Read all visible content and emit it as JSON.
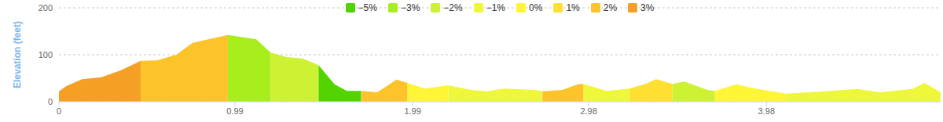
{
  "chart_data": {
    "type": "area",
    "y_label": "Elevation (feet)",
    "legend": "top",
    "grid": true,
    "xlim": [
      0,
      4.96
    ],
    "xticks": [
      0,
      0.99,
      1.99,
      2.98,
      3.98
    ],
    "ylim": [
      0,
      200
    ],
    "yticks": [
      0,
      100,
      200
    ],
    "x": [
      0,
      0.04,
      0.13,
      0.24,
      0.35,
      0.46,
      0.55,
      0.66,
      0.75,
      0.84,
      0.95,
      1.04,
      1.11,
      1.19,
      1.28,
      1.37,
      1.46,
      1.55,
      1.62,
      1.7,
      1.79,
      1.9,
      1.96,
      2.06,
      2.19,
      2.32,
      2.41,
      2.5,
      2.68,
      2.72,
      2.83,
      2.92,
      2.95,
      3.08,
      3.21,
      3.3,
      3.36,
      3.45,
      3.52,
      3.56,
      3.65,
      3.69,
      3.81,
      3.92,
      4.09,
      4.31,
      4.49,
      4.62,
      4.8,
      4.87,
      4.96
    ],
    "series": [
      {
        "name": "−5%",
        "color": "#52d400",
        "values": [
          null,
          null,
          null,
          null,
          null,
          null,
          null,
          null,
          null,
          null,
          null,
          null,
          null,
          null,
          null,
          null,
          78,
          37,
          23,
          23,
          null,
          null,
          null,
          null,
          null,
          null,
          null,
          null,
          null,
          null,
          null,
          null,
          null,
          null,
          null,
          null,
          null,
          null,
          null,
          null,
          null,
          null,
          null,
          null,
          null,
          null,
          null,
          null,
          null,
          null,
          null
        ]
      },
      {
        "name": "−3%",
        "color": "#a8ee1c",
        "values": [
          null,
          null,
          null,
          null,
          null,
          null,
          null,
          null,
          null,
          null,
          142,
          137,
          133,
          105,
          null,
          null,
          null,
          null,
          null,
          null,
          null,
          null,
          null,
          null,
          null,
          null,
          null,
          null,
          null,
          null,
          null,
          null,
          null,
          null,
          null,
          null,
          null,
          null,
          null,
          null,
          null,
          null,
          null,
          null,
          null,
          null,
          null,
          null,
          null,
          null,
          null
        ]
      },
      {
        "name": "−2%",
        "color": "#cdf233",
        "values": [
          null,
          null,
          null,
          null,
          null,
          null,
          null,
          null,
          null,
          null,
          null,
          null,
          null,
          105,
          95,
          92,
          78,
          null,
          null,
          null,
          null,
          null,
          null,
          null,
          null,
          null,
          null,
          null,
          null,
          null,
          null,
          null,
          null,
          null,
          null,
          null,
          null,
          38,
          43,
          37,
          25,
          23,
          null,
          null,
          null,
          null,
          null,
          null,
          null,
          null,
          null
        ]
      },
      {
        "name": "−1%",
        "color": "#eef73a",
        "values": [
          null,
          null,
          null,
          null,
          null,
          null,
          null,
          null,
          null,
          null,
          null,
          null,
          null,
          null,
          null,
          null,
          null,
          null,
          null,
          null,
          null,
          null,
          null,
          null,
          35,
          25,
          22,
          28,
          25,
          22,
          null,
          null,
          38,
          23,
          28,
          null,
          null,
          null,
          null,
          null,
          null,
          null,
          null,
          null,
          17,
          22,
          27,
          20,
          27,
          40,
          20
        ]
      },
      {
        "name": "0%",
        "color": "#fff537",
        "values": [
          null,
          null,
          null,
          null,
          null,
          null,
          null,
          null,
          null,
          null,
          null,
          null,
          null,
          null,
          null,
          null,
          null,
          null,
          null,
          null,
          null,
          null,
          40,
          28,
          35,
          null,
          null,
          null,
          null,
          null,
          null,
          null,
          null,
          null,
          null,
          null,
          null,
          null,
          null,
          null,
          null,
          23,
          37,
          28,
          17,
          null,
          null,
          null,
          null,
          null,
          null
        ]
      },
      {
        "name": "1%",
        "color": "#ffe030",
        "values": [
          null,
          null,
          null,
          null,
          null,
          null,
          null,
          null,
          null,
          null,
          null,
          null,
          null,
          null,
          null,
          null,
          null,
          null,
          null,
          null,
          null,
          null,
          null,
          null,
          null,
          null,
          null,
          null,
          null,
          null,
          null,
          null,
          null,
          null,
          28,
          38,
          48,
          38,
          null,
          null,
          null,
          null,
          null,
          null,
          null,
          null,
          null,
          null,
          null,
          null,
          null
        ]
      },
      {
        "name": "2%",
        "color": "#fcc42a",
        "values": [
          null,
          null,
          null,
          null,
          null,
          87,
          88,
          100,
          125,
          133,
          142,
          null,
          null,
          null,
          null,
          null,
          null,
          null,
          null,
          23,
          20,
          47,
          40,
          null,
          null,
          null,
          null,
          null,
          null,
          22,
          25,
          37,
          38,
          null,
          null,
          null,
          null,
          null,
          null,
          null,
          null,
          null,
          null,
          null,
          null,
          null,
          null,
          null,
          null,
          null,
          null
        ]
      },
      {
        "name": "3%",
        "color": "#f5a024",
        "values": [
          22,
          33,
          48,
          52,
          67,
          87,
          null,
          null,
          null,
          null,
          null,
          null,
          null,
          null,
          null,
          null,
          null,
          null,
          null,
          null,
          null,
          null,
          null,
          null,
          null,
          null,
          null,
          null,
          null,
          null,
          null,
          null,
          null,
          null,
          null,
          null,
          null,
          null,
          null,
          null,
          null,
          null,
          null,
          null,
          null,
          null,
          null,
          null,
          null,
          null,
          null
        ]
      }
    ]
  }
}
